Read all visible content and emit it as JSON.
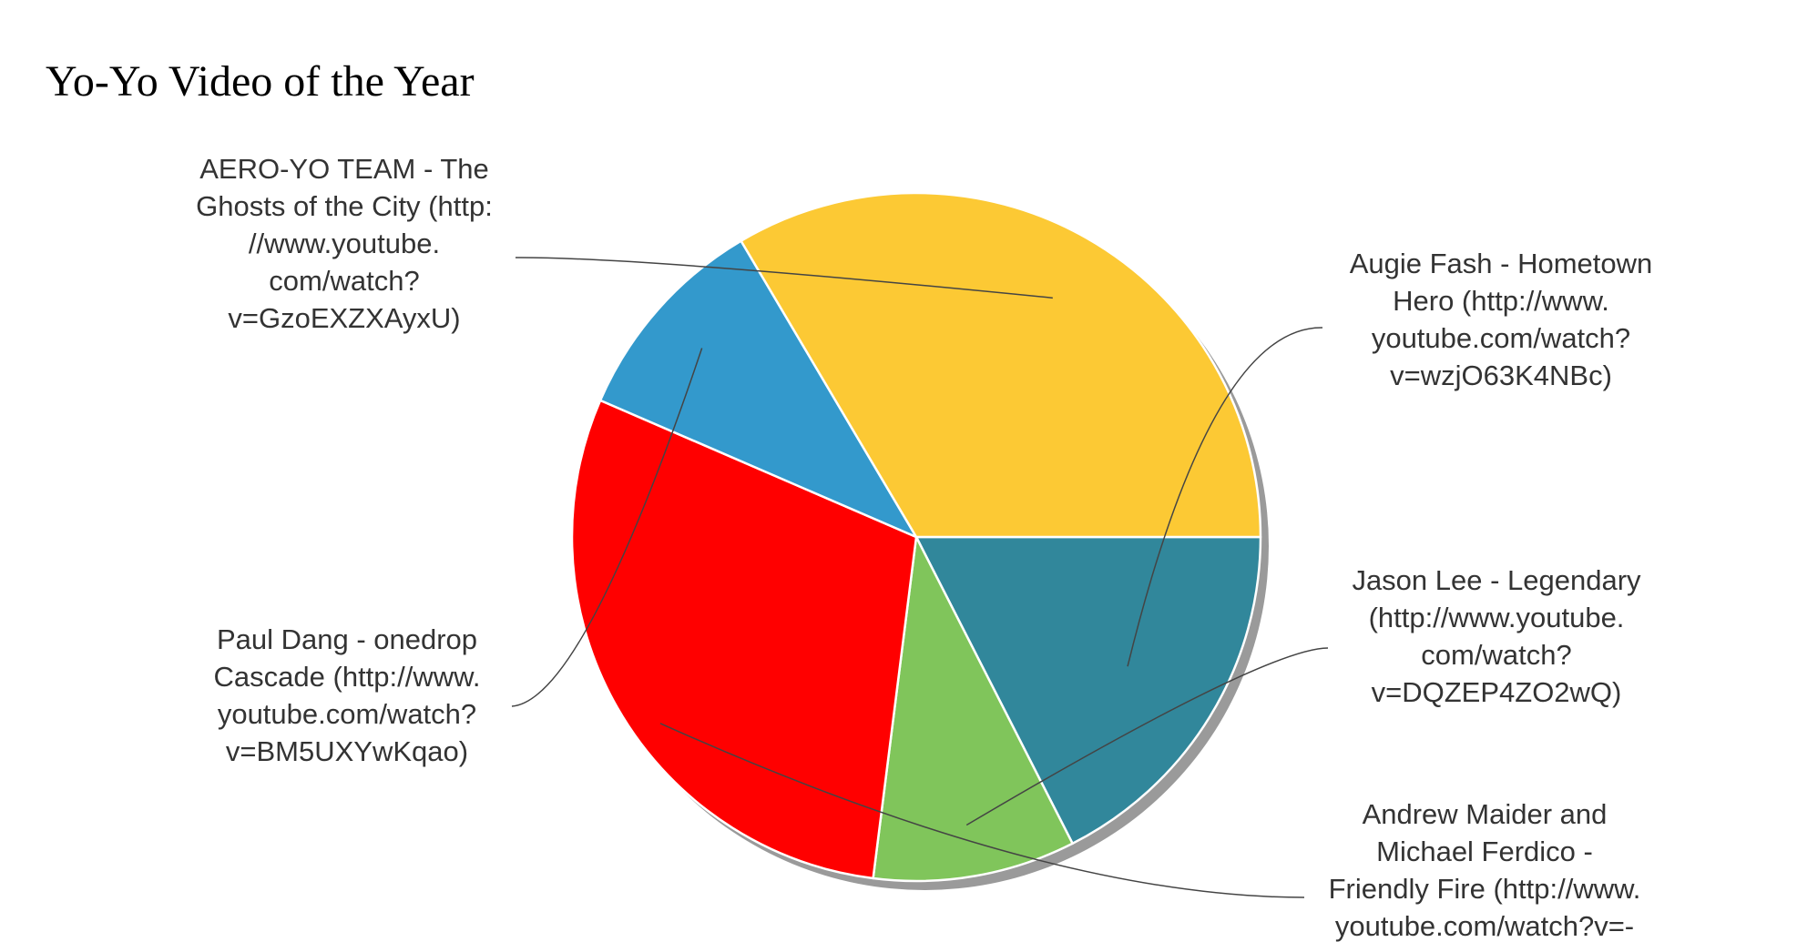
{
  "page": {
    "title": "Yo-Yo Video of the Year"
  },
  "chart_data": {
    "type": "pie",
    "title": "Yo-Yo Video of the Year",
    "slices": [
      {
        "name": "Augie Fash - Hometown Hero (http://www.youtube.com/watch?v=wzjO63K4NBc)",
        "value": 17.5,
        "color": "#31879b",
        "label_lines": [
          "Augie Fash - Hometown",
          "Hero (http://www.",
          "youtube.com/watch?",
          "v=wzjO63K4NBc)"
        ]
      },
      {
        "name": "Jason Lee - Legendary (http://www.youtube.com/watch?v=DQZEP4ZO2wQ)",
        "value": 9.5,
        "color": "#80c55b",
        "label_lines": [
          "Jason Lee - Legendary",
          "(http://www.youtube.",
          "com/watch?",
          "v=DQZEP4ZO2wQ)"
        ]
      },
      {
        "name": "Andrew Maider and Michael Ferdico - Friendly Fire (http://www.youtube.com/watch?v=-",
        "value": 29.5,
        "color": "#ff0000",
        "label_lines": [
          "Andrew Maider and",
          "Michael Ferdico -",
          "Friendly Fire (http://www.",
          "youtube.com/watch?v=-"
        ]
      },
      {
        "name": "Paul Dang - onedrop Cascade (http://www.youtube.com/watch?v=BM5UXYwKqao)",
        "value": 10.0,
        "color": "#3399cc",
        "label_lines": [
          "Paul Dang - onedrop",
          "Cascade (http://www.",
          "youtube.com/watch?",
          "v=BM5UXYwKqao)"
        ]
      },
      {
        "name": "AERO-YO TEAM - The Ghosts of the City (http://www.youtube.com/watch?v=GzoEXZXAyxU)",
        "value": 33.5,
        "color": "#fcc934",
        "label_lines": [
          "AERO-YO TEAM - The",
          "Ghosts of the City (http:",
          "//www.youtube.",
          "com/watch?",
          "v=GzoEXZXAyxU)"
        ]
      }
    ],
    "start_angle_deg": 0,
    "direction": "clockwise",
    "legend": "none",
    "labels": "outside-with-leader-lines"
  }
}
